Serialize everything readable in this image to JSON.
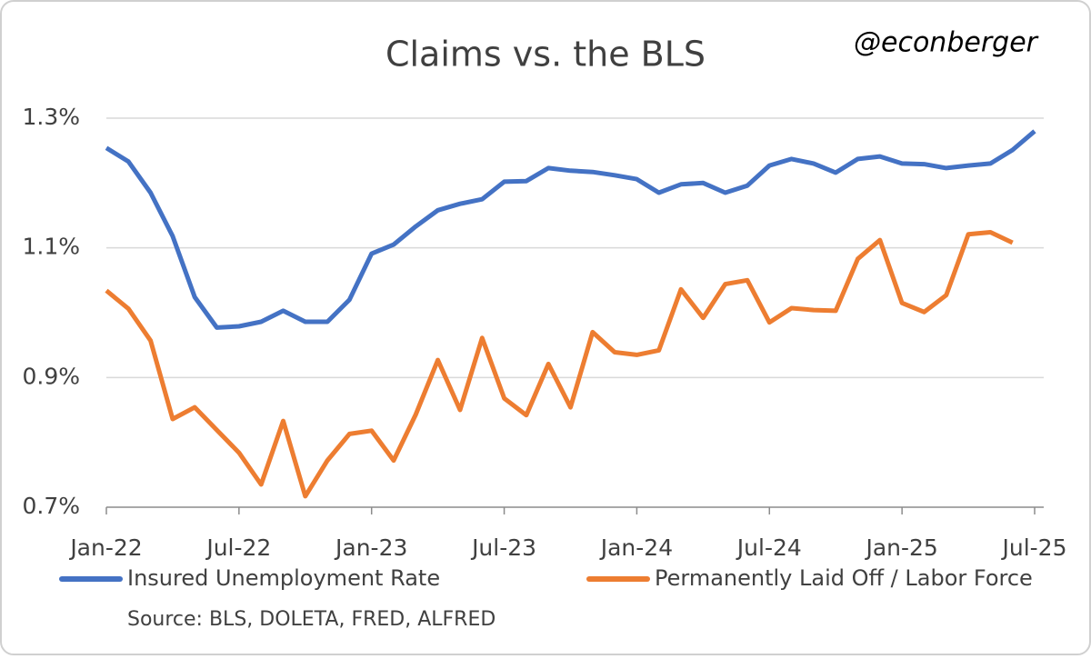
{
  "chart_data": {
    "type": "line",
    "title": "Claims vs. the BLS",
    "annotation": "@econberger",
    "source": "Source: BLS, DOLETA, FRED, ALFRED",
    "categories": [
      "Jan-22",
      null,
      null,
      null,
      null,
      null,
      "Jul-22",
      null,
      null,
      null,
      null,
      null,
      "Jan-23",
      null,
      null,
      null,
      null,
      null,
      "Jul-23",
      null,
      null,
      null,
      null,
      null,
      "Jan-24",
      null,
      null,
      null,
      null,
      null,
      "Jul-24",
      null,
      null,
      null,
      null,
      null,
      "Jan-25",
      null,
      null,
      null,
      null,
      null,
      "Jul-25"
    ],
    "series": [
      {
        "name": "Insured Unemployment Rate",
        "color": "#4472c4",
        "values": [
          1.254,
          1.233,
          1.185,
          1.118,
          1.024,
          0.977,
          0.979,
          0.986,
          1.003,
          0.986,
          0.986,
          1.02,
          1.091,
          1.105,
          1.133,
          1.158,
          1.168,
          1.175,
          1.202,
          1.203,
          1.223,
          1.219,
          1.217,
          1.212,
          1.206,
          1.185,
          1.198,
          1.2,
          1.185,
          1.196,
          1.227,
          1.237,
          1.23,
          1.216,
          1.237,
          1.241,
          1.23,
          1.229,
          1.223,
          1.227,
          1.23,
          1.251,
          1.28
        ]
      },
      {
        "name": "Permanently Laid Off / Labor Force",
        "color": "#ed7d31",
        "values": [
          1.034,
          1.006,
          0.957,
          0.836,
          0.854,
          0.819,
          0.784,
          0.735,
          0.833,
          0.717,
          0.772,
          0.813,
          0.818,
          0.772,
          0.843,
          0.927,
          0.85,
          0.961,
          0.868,
          0.842,
          0.921,
          0.854,
          0.97,
          0.939,
          0.935,
          0.942,
          1.036,
          0.992,
          1.044,
          1.05,
          0.985,
          1.007,
          1.004,
          1.003,
          1.083,
          1.112,
          1.015,
          1.001,
          1.027,
          1.121,
          1.124,
          1.108,
          null
        ]
      }
    ],
    "ylim": [
      0.7,
      1.3
    ],
    "yticks": [
      {
        "value": 0.7,
        "label": "0.7%"
      },
      {
        "value": 0.9,
        "label": "0.9%"
      },
      {
        "value": 1.1,
        "label": "1.1%"
      },
      {
        "value": 1.3,
        "label": "1.3%"
      }
    ],
    "grid": true,
    "legend": "bottom"
  }
}
